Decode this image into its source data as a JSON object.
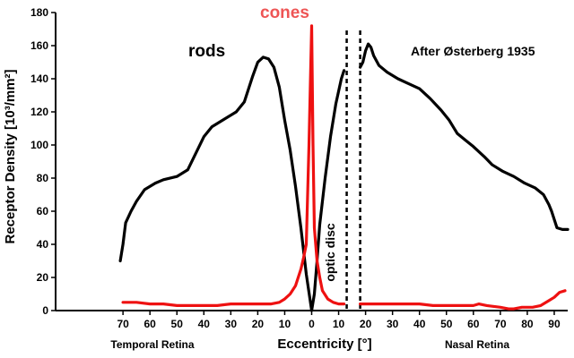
{
  "chart_data": {
    "type": "line",
    "title": "",
    "xlabel": "Eccentricity [°]",
    "ylabel": "Receptor Density [10³/mm²]",
    "xlim": [
      -95,
      95
    ],
    "ylim": [
      0,
      180
    ],
    "yticks": [
      0,
      20,
      40,
      60,
      80,
      100,
      120,
      140,
      160,
      180
    ],
    "xtick_labels": [
      "70",
      "60",
      "50",
      "40",
      "30",
      "20",
      "10",
      "0",
      "10",
      "20",
      "30",
      "40",
      "50",
      "60",
      "70",
      "80",
      "90"
    ],
    "xtick_values": [
      -70,
      -60,
      -50,
      -40,
      -30,
      -20,
      -10,
      0,
      10,
      20,
      30,
      40,
      50,
      60,
      70,
      80,
      90
    ],
    "region_labels": {
      "left": "Temporal Retina",
      "right": "Nasal Retina"
    },
    "annotations": {
      "source": "After Østerberg 1935",
      "optic_disc": "optic disc"
    },
    "optic_disc_range": [
      13,
      18
    ],
    "grid": false,
    "series": [
      {
        "name": "rods",
        "color": "#000000",
        "segments": [
          [
            [
              -71,
              30
            ],
            [
              -70,
              40
            ],
            [
              -69,
              53
            ],
            [
              -67,
              60
            ],
            [
              -65,
              66
            ],
            [
              -62,
              73
            ],
            [
              -58,
              77
            ],
            [
              -55,
              79
            ],
            [
              -50,
              81
            ],
            [
              -46,
              85
            ],
            [
              -43,
              95
            ],
            [
              -40,
              105
            ],
            [
              -37,
              111
            ],
            [
              -33,
              115
            ],
            [
              -28,
              120
            ],
            [
              -25,
              126
            ],
            [
              -22,
              141
            ],
            [
              -20,
              150
            ],
            [
              -18,
              153
            ],
            [
              -16,
              152
            ],
            [
              -14,
              147
            ],
            [
              -12,
              135
            ],
            [
              -10,
              115
            ],
            [
              -8,
              97
            ],
            [
              -6,
              75
            ],
            [
              -4,
              50
            ],
            [
              -2,
              22
            ],
            [
              0,
              0
            ],
            [
              1,
              10
            ],
            [
              2,
              30
            ],
            [
              3,
              52
            ],
            [
              5,
              80
            ],
            [
              7,
              105
            ],
            [
              9,
              125
            ],
            [
              11,
              140
            ],
            [
              12,
              145
            ]
          ],
          [
            [
              18,
              147
            ],
            [
              19,
              150
            ],
            [
              20,
              157
            ],
            [
              21,
              161
            ],
            [
              22,
              159
            ],
            [
              23,
              154
            ],
            [
              25,
              148
            ],
            [
              28,
              144
            ],
            [
              32,
              140
            ],
            [
              36,
              137
            ],
            [
              40,
              134
            ],
            [
              44,
              128
            ],
            [
              48,
              121
            ],
            [
              51,
              115
            ],
            [
              54,
              107
            ],
            [
              57,
              103
            ],
            [
              60,
              99
            ],
            [
              64,
              93
            ],
            [
              67,
              88
            ],
            [
              71,
              84
            ],
            [
              75,
              81
            ],
            [
              79,
              77
            ],
            [
              83,
              74
            ],
            [
              86,
              70
            ],
            [
              88,
              64
            ],
            [
              89,
              60
            ],
            [
              91,
              50
            ],
            [
              93,
              49
            ],
            [
              95,
              49
            ]
          ]
        ]
      },
      {
        "name": "cones",
        "color": "#ee1111",
        "segments": [
          [
            [
              -70,
              5
            ],
            [
              -65,
              5
            ],
            [
              -60,
              4
            ],
            [
              -55,
              4
            ],
            [
              -50,
              3
            ],
            [
              -45,
              3
            ],
            [
              -40,
              3
            ],
            [
              -35,
              3
            ],
            [
              -30,
              4
            ],
            [
              -25,
              4
            ],
            [
              -20,
              4
            ],
            [
              -15,
              4
            ],
            [
              -12,
              5
            ],
            [
              -10,
              7
            ],
            [
              -8,
              10
            ],
            [
              -6,
              15
            ],
            [
              -4,
              25
            ],
            [
              -3,
              32
            ],
            [
              -2,
              40
            ],
            [
              -1,
              100
            ],
            [
              0,
              172
            ],
            [
              0.5,
              100
            ],
            [
              1,
              50
            ],
            [
              2,
              30
            ],
            [
              3,
              20
            ],
            [
              4,
              12
            ],
            [
              6,
              7
            ],
            [
              8,
              5
            ],
            [
              10,
              4
            ],
            [
              12,
              4
            ]
          ],
          [
            [
              18,
              4
            ],
            [
              20,
              4
            ],
            [
              25,
              4
            ],
            [
              30,
              4
            ],
            [
              35,
              4
            ],
            [
              40,
              4
            ],
            [
              45,
              3
            ],
            [
              50,
              3
            ],
            [
              55,
              3
            ],
            [
              60,
              3
            ],
            [
              62,
              4
            ],
            [
              65,
              3
            ],
            [
              70,
              2
            ],
            [
              73,
              1
            ],
            [
              75,
              1
            ],
            [
              78,
              2
            ],
            [
              82,
              2
            ],
            [
              85,
              3
            ],
            [
              88,
              6
            ],
            [
              90,
              8
            ],
            [
              92,
              11
            ],
            [
              94,
              12
            ]
          ]
        ]
      }
    ]
  }
}
